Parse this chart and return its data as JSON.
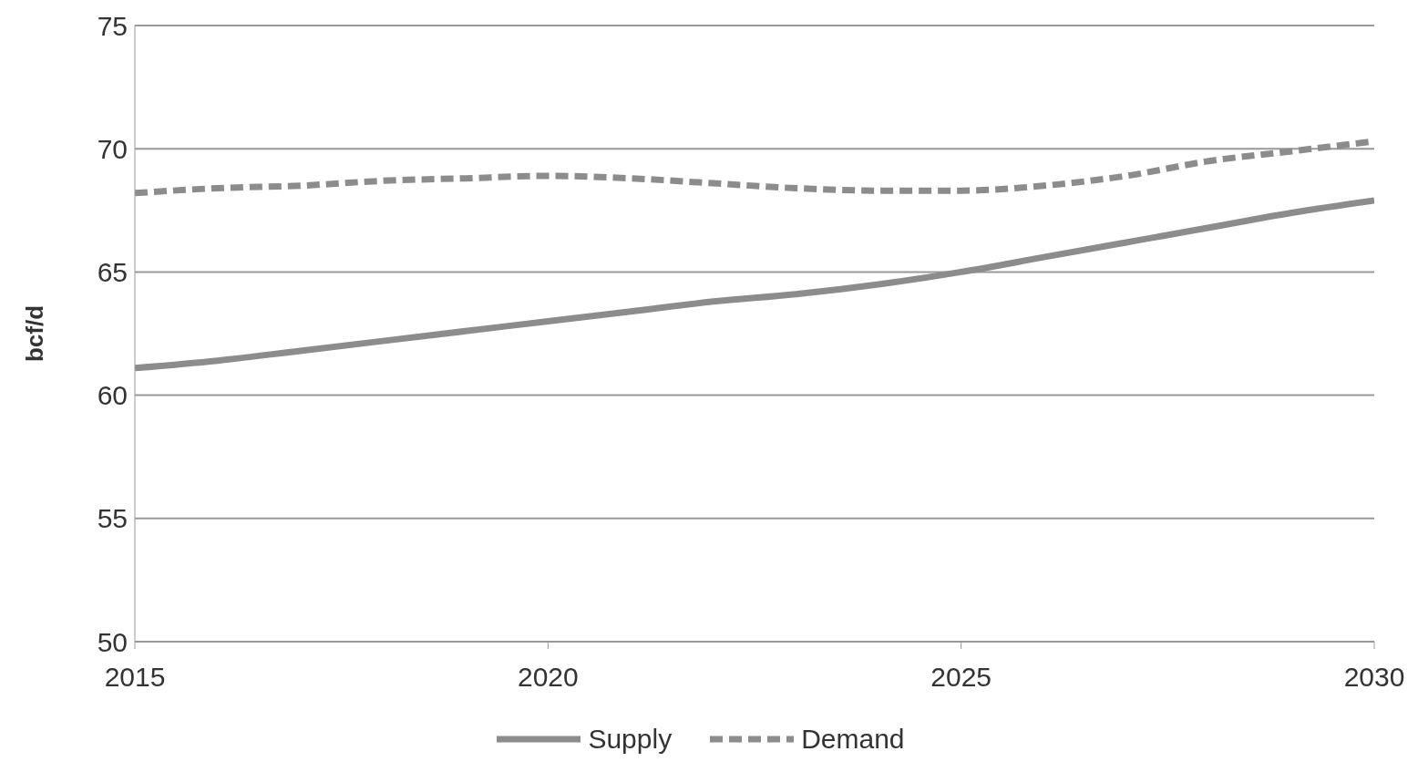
{
  "chart_data": {
    "type": "line",
    "ylabel": "bcf/d",
    "x": [
      2015,
      2016,
      2017,
      2018,
      2019,
      2020,
      2021,
      2022,
      2023,
      2024,
      2025,
      2026,
      2027,
      2028,
      2029,
      2030
    ],
    "series": [
      {
        "name": "Supply",
        "color": "#8c8c8c",
        "line_style": "solid",
        "values": [
          61.1,
          61.4,
          61.8,
          62.2,
          62.6,
          63.0,
          63.4,
          63.8,
          64.1,
          64.5,
          65.0,
          65.6,
          66.2,
          66.8,
          67.4,
          67.9
        ]
      },
      {
        "name": "Demand",
        "color": "#8c8c8c",
        "line_style": "dashed",
        "values": [
          68.2,
          68.4,
          68.5,
          68.7,
          68.8,
          68.9,
          68.8,
          68.6,
          68.4,
          68.3,
          68.3,
          68.5,
          68.9,
          69.5,
          69.9,
          70.3
        ]
      }
    ],
    "xlim": [
      2015,
      2030
    ],
    "xticks": [
      2015,
      2020,
      2025,
      2030
    ],
    "ylim": [
      50,
      75
    ],
    "yticks": [
      50,
      55,
      60,
      65,
      70,
      75
    ],
    "grid": "y",
    "legend": "bottom",
    "marker": "none"
  }
}
